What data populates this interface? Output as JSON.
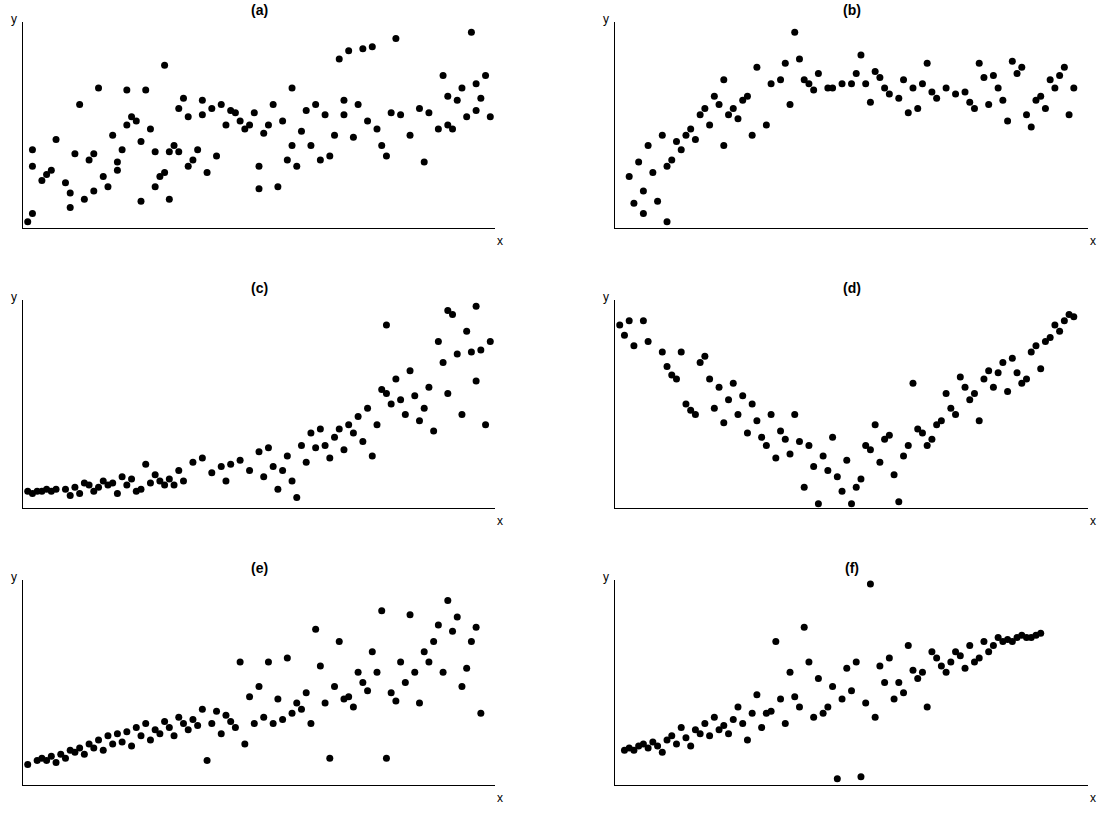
{
  "chart_data": [
    {
      "type": "scatter",
      "title": "(a)",
      "xlabel": "x",
      "ylabel": "y",
      "color": "#000000",
      "marker": "circle",
      "grid": false,
      "tick_labels": false,
      "xlim": [
        0,
        100
      ],
      "ylim": [
        0,
        100
      ],
      "xticks": [],
      "yticks": [],
      "x": [
        1,
        2,
        2,
        2,
        4,
        5,
        6,
        7,
        9,
        10,
        10,
        11,
        12,
        13,
        14,
        15,
        15,
        16,
        17,
        18,
        19,
        20,
        20,
        21,
        22,
        22,
        23,
        24,
        25,
        25,
        26,
        27,
        28,
        28,
        29,
        30,
        30,
        31,
        31,
        32,
        33,
        33,
        34,
        35,
        35,
        36,
        37,
        38,
        38,
        39,
        40,
        41,
        42,
        43,
        44,
        45,
        46,
        47,
        48,
        49,
        50,
        50,
        51,
        52,
        53,
        54,
        55,
        56,
        57,
        57,
        58,
        59,
        60,
        61,
        62,
        63,
        64,
        65,
        66,
        67,
        68,
        68,
        69,
        70,
        71,
        72,
        73,
        74,
        75,
        76,
        77,
        78,
        79,
        80,
        82,
        84,
        85,
        86,
        88,
        89,
        90,
        90,
        91,
        92,
        93,
        94,
        95,
        96,
        96,
        97,
        98,
        99
      ],
      "y": [
        3,
        7,
        30,
        38,
        23,
        26,
        28,
        43,
        22,
        10,
        17,
        36,
        60,
        14,
        33,
        18,
        36,
        68,
        25,
        20,
        45,
        32,
        28,
        38,
        50,
        67,
        54,
        52,
        13,
        42,
        67,
        48,
        37,
        20,
        25,
        79,
        27,
        37,
        14,
        40,
        37,
        58,
        63,
        54,
        30,
        33,
        38,
        55,
        62,
        27,
        58,
        35,
        60,
        50,
        57,
        56,
        52,
        48,
        50,
        56,
        30,
        19,
        46,
        50,
        60,
        20,
        52,
        33,
        68,
        40,
        30,
        47,
        57,
        40,
        60,
        33,
        55,
        35,
        45,
        82,
        55,
        62,
        86,
        44,
        60,
        87,
        52,
        88,
        48,
        40,
        35,
        56,
        92,
        55,
        45,
        58,
        32,
        56,
        48,
        74,
        64,
        50,
        48,
        62,
        68,
        54,
        95,
        70,
        57,
        63,
        74,
        54
      ]
    },
    {
      "type": "scatter",
      "title": "(b)",
      "xlabel": "x",
      "ylabel": "y",
      "color": "#000000",
      "marker": "circle",
      "grid": false,
      "tick_labels": false,
      "xlim": [
        0,
        100
      ],
      "ylim": [
        0,
        100
      ],
      "xticks": [],
      "yticks": [],
      "x": [
        3,
        4,
        5,
        6,
        6,
        7,
        8,
        9,
        10,
        11,
        11,
        12,
        13,
        14,
        15,
        16,
        17,
        18,
        19,
        20,
        21,
        22,
        23,
        23,
        24,
        25,
        26,
        27,
        28,
        29,
        30,
        32,
        33,
        35,
        36,
        37,
        38,
        39,
        40,
        41,
        42,
        43,
        45,
        46,
        48,
        50,
        51,
        52,
        53,
        54,
        55,
        56,
        57,
        58,
        60,
        61,
        62,
        63,
        64,
        65,
        66,
        67,
        68,
        70,
        72,
        74,
        75,
        76,
        77,
        78,
        79,
        80,
        81,
        82,
        83,
        84,
        85,
        86,
        87,
        88,
        89,
        90,
        91,
        92,
        93,
        94,
        95,
        96,
        97
      ],
      "y": [
        25,
        12,
        32,
        18,
        7,
        40,
        27,
        13,
        45,
        3,
        30,
        33,
        42,
        38,
        45,
        48,
        43,
        55,
        58,
        50,
        64,
        60,
        72,
        40,
        55,
        58,
        53,
        62,
        64,
        45,
        78,
        50,
        70,
        72,
        80,
        60,
        95,
        82,
        72,
        70,
        67,
        75,
        68,
        68,
        70,
        70,
        75,
        84,
        70,
        61,
        76,
        73,
        68,
        65,
        63,
        72,
        56,
        68,
        58,
        70,
        80,
        66,
        63,
        68,
        65,
        66,
        61,
        58,
        80,
        73,
        60,
        74,
        68,
        62,
        52,
        81,
        75,
        78,
        55,
        49,
        62,
        64,
        58,
        72,
        68,
        74,
        78,
        55,
        68
      ]
    },
    {
      "type": "scatter",
      "title": "(c)",
      "xlabel": "x",
      "ylabel": "y",
      "color": "#000000",
      "marker": "circle",
      "grid": false,
      "tick_labels": false,
      "xlim": [
        0,
        100
      ],
      "ylim": [
        0,
        100
      ],
      "xticks": [],
      "yticks": [],
      "x": [
        1,
        2,
        3,
        4,
        5,
        6,
        7,
        9,
        10,
        11,
        12,
        13,
        14,
        15,
        16,
        17,
        18,
        19,
        20,
        21,
        22,
        23,
        24,
        25,
        26,
        27,
        28,
        29,
        30,
        31,
        32,
        33,
        34,
        36,
        38,
        40,
        42,
        43,
        44,
        46,
        48,
        50,
        51,
        52,
        53,
        54,
        55,
        56,
        57,
        58,
        59,
        60,
        61,
        62,
        63,
        64,
        65,
        66,
        67,
        68,
        69,
        70,
        71,
        72,
        73,
        74,
        75,
        76,
        77,
        77,
        78,
        79,
        80,
        81,
        82,
        83,
        84,
        85,
        86,
        87,
        88,
        89,
        90,
        90,
        91,
        92,
        93,
        94,
        95,
        96,
        96,
        97,
        98,
        99
      ],
      "y": [
        8,
        7,
        8,
        8,
        9,
        8,
        9,
        9,
        6,
        10,
        7,
        12,
        11,
        8,
        10,
        13,
        11,
        12,
        7,
        15,
        11,
        14,
        8,
        9,
        21,
        12,
        16,
        13,
        11,
        14,
        11,
        18,
        13,
        22,
        24,
        17,
        20,
        13,
        21,
        23,
        18,
        27,
        15,
        29,
        20,
        9,
        18,
        25,
        13,
        5,
        30,
        22,
        36,
        29,
        38,
        30,
        24,
        34,
        38,
        28,
        40,
        36,
        44,
        32,
        48,
        25,
        40,
        57,
        55,
        88,
        50,
        62,
        52,
        45,
        66,
        54,
        42,
        48,
        58,
        37,
        80,
        70,
        95,
        55,
        93,
        74,
        45,
        85,
        75,
        97,
        61,
        76,
        40,
        80
      ]
    },
    {
      "type": "scatter",
      "title": "(d)",
      "xlabel": "x",
      "ylabel": "y",
      "color": "#000000",
      "marker": "circle",
      "grid": false,
      "tick_labels": false,
      "xlim": [
        0,
        100
      ],
      "ylim": [
        0,
        100
      ],
      "xticks": [],
      "yticks": [],
      "x": [
        1,
        2,
        3,
        4,
        6,
        7,
        10,
        11,
        12,
        13,
        14,
        15,
        16,
        17,
        18,
        19,
        20,
        21,
        22,
        23,
        24,
        25,
        26,
        27,
        28,
        29,
        30,
        31,
        32,
        33,
        34,
        35,
        36,
        37,
        38,
        39,
        40,
        41,
        42,
        43,
        44,
        45,
        46,
        47,
        48,
        49,
        50,
        51,
        52,
        53,
        54,
        55,
        56,
        57,
        58,
        59,
        60,
        61,
        62,
        63,
        64,
        65,
        66,
        67,
        68,
        69,
        70,
        71,
        72,
        73,
        74,
        75,
        76,
        77,
        78,
        79,
        80,
        81,
        82,
        83,
        84,
        85,
        86,
        87,
        88,
        89,
        90,
        91,
        92,
        93,
        94,
        95,
        96,
        97
      ],
      "y": [
        88,
        83,
        90,
        78,
        90,
        80,
        75,
        68,
        64,
        62,
        75,
        50,
        47,
        45,
        70,
        73,
        62,
        48,
        58,
        41,
        52,
        60,
        45,
        54,
        36,
        50,
        42,
        34,
        30,
        45,
        24,
        37,
        33,
        26,
        45,
        32,
        10,
        30,
        20,
        2,
        25,
        18,
        34,
        15,
        8,
        23,
        2,
        10,
        14,
        30,
        28,
        40,
        22,
        33,
        35,
        16,
        3,
        25,
        30,
        60,
        38,
        36,
        30,
        33,
        40,
        42,
        55,
        48,
        45,
        63,
        58,
        52,
        55,
        42,
        62,
        66,
        58,
        65,
        70,
        56,
        72,
        65,
        60,
        62,
        75,
        78,
        67,
        80,
        82,
        88,
        85,
        90,
        93,
        92
      ]
    },
    {
      "type": "scatter",
      "title": "(e)",
      "xlabel": "x",
      "ylabel": "y",
      "color": "#000000",
      "marker": "circle",
      "grid": false,
      "tick_labels": false,
      "xlim": [
        0,
        100
      ],
      "ylim": [
        0,
        100
      ],
      "xticks": [],
      "yticks": [],
      "x": [
        1,
        3,
        4,
        5,
        6,
        7,
        8,
        9,
        10,
        11,
        12,
        13,
        14,
        15,
        16,
        17,
        18,
        19,
        20,
        21,
        22,
        23,
        24,
        25,
        26,
        27,
        28,
        29,
        30,
        31,
        32,
        33,
        34,
        35,
        36,
        37,
        38,
        39,
        40,
        41,
        42,
        43,
        44,
        45,
        46,
        47,
        48,
        49,
        50,
        51,
        52,
        53,
        54,
        55,
        56,
        57,
        58,
        59,
        60,
        61,
        62,
        63,
        64,
        65,
        66,
        67,
        68,
        69,
        70,
        71,
        72,
        73,
        74,
        75,
        76,
        77,
        78,
        79,
        80,
        81,
        82,
        83,
        84,
        85,
        86,
        87,
        88,
        89,
        90,
        91,
        92,
        93,
        94,
        95,
        96,
        97
      ],
      "y": [
        10,
        12,
        13,
        12,
        14,
        11,
        15,
        13,
        17,
        16,
        18,
        15,
        20,
        18,
        22,
        17,
        24,
        20,
        25,
        21,
        26,
        19,
        28,
        24,
        30,
        22,
        27,
        25,
        31,
        28,
        24,
        33,
        30,
        27,
        32,
        29,
        37,
        12,
        30,
        36,
        25,
        34,
        31,
        28,
        60,
        20,
        43,
        30,
        48,
        33,
        60,
        30,
        42,
        32,
        62,
        35,
        40,
        37,
        45,
        30,
        76,
        58,
        40,
        13,
        48,
        70,
        42,
        43,
        38,
        55,
        50,
        46,
        65,
        55,
        85,
        13,
        45,
        41,
        60,
        50,
        83,
        55,
        40,
        65,
        60,
        70,
        78,
        55,
        90,
        75,
        82,
        48,
        57,
        70,
        77,
        35
      ]
    },
    {
      "type": "scatter",
      "title": "(f)",
      "xlabel": "x",
      "ylabel": "y",
      "color": "#000000",
      "marker": "circle",
      "grid": false,
      "tick_labels": false,
      "xlim": [
        0,
        100
      ],
      "ylim": [
        0,
        100
      ],
      "xticks": [],
      "yticks": [],
      "x": [
        2,
        3,
        4,
        5,
        6,
        7,
        8,
        9,
        10,
        11,
        12,
        13,
        14,
        15,
        16,
        17,
        18,
        19,
        20,
        21,
        22,
        23,
        24,
        25,
        26,
        27,
        28,
        29,
        30,
        31,
        32,
        33,
        34,
        35,
        36,
        37,
        38,
        39,
        40,
        41,
        42,
        43,
        44,
        45,
        46,
        47,
        48,
        49,
        50,
        51,
        52,
        53,
        54,
        55,
        56,
        57,
        58,
        59,
        60,
        61,
        62,
        63,
        64,
        65,
        66,
        67,
        68,
        69,
        70,
        71,
        72,
        73,
        74,
        75,
        76,
        77,
        78,
        79,
        80,
        81,
        82,
        83,
        84,
        85,
        86,
        87,
        88,
        89,
        90
      ],
      "y": [
        17,
        18,
        17,
        19,
        20,
        18,
        21,
        19,
        16,
        22,
        24,
        20,
        28,
        23,
        19,
        27,
        25,
        30,
        24,
        33,
        27,
        29,
        25,
        32,
        38,
        30,
        22,
        35,
        44,
        28,
        35,
        36,
        70,
        42,
        30,
        55,
        43,
        38,
        77,
        60,
        33,
        52,
        35,
        38,
        48,
        3,
        42,
        57,
        46,
        60,
        4,
        40,
        98,
        33,
        58,
        50,
        62,
        42,
        50,
        45,
        68,
        56,
        52,
        55,
        38,
        65,
        62,
        58,
        55,
        60,
        65,
        63,
        57,
        68,
        60,
        62,
        70,
        65,
        68,
        72,
        70,
        71,
        70,
        72,
        73,
        72,
        72,
        73,
        74
      ]
    }
  ]
}
